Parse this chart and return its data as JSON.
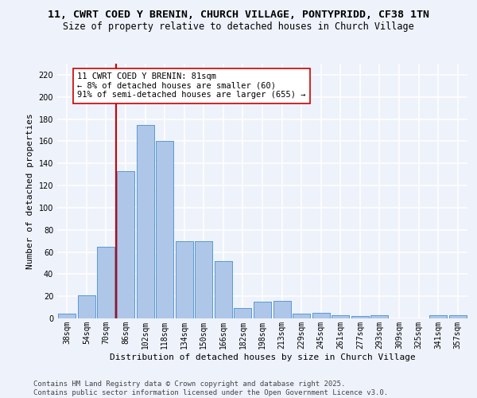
{
  "title_line1": "11, CWRT COED Y BRENIN, CHURCH VILLAGE, PONTYPRIDD, CF38 1TN",
  "title_line2": "Size of property relative to detached houses in Church Village",
  "xlabel": "Distribution of detached houses by size in Church Village",
  "ylabel": "Number of detached properties",
  "categories": [
    "38sqm",
    "54sqm",
    "70sqm",
    "86sqm",
    "102sqm",
    "118sqm",
    "134sqm",
    "150sqm",
    "166sqm",
    "182sqm",
    "198sqm",
    "213sqm",
    "229sqm",
    "245sqm",
    "261sqm",
    "277sqm",
    "293sqm",
    "309sqm",
    "325sqm",
    "341sqm",
    "357sqm"
  ],
  "values": [
    4,
    21,
    65,
    133,
    175,
    160,
    70,
    70,
    52,
    9,
    15,
    16,
    4,
    5,
    3,
    2,
    3,
    0,
    0,
    3,
    3
  ],
  "bar_color": "#aec6e8",
  "bar_edge_color": "#5b9bd5",
  "vline_color": "#cc0000",
  "vline_x": 2.5,
  "annotation_text": "11 CWRT COED Y BRENIN: 81sqm\n← 8% of detached houses are smaller (60)\n91% of semi-detached houses are larger (655) →",
  "annotation_box_color": "#ffffff",
  "annotation_box_edge": "#cc0000",
  "ylim": [
    0,
    230
  ],
  "yticks": [
    0,
    20,
    40,
    60,
    80,
    100,
    120,
    140,
    160,
    180,
    200,
    220
  ],
  "background_color": "#eef2fb",
  "grid_color": "#ffffff",
  "footer_text": "Contains HM Land Registry data © Crown copyright and database right 2025.\nContains public sector information licensed under the Open Government Licence v3.0.",
  "title_fontsize": 9.5,
  "subtitle_fontsize": 8.5,
  "axis_label_fontsize": 8,
  "tick_fontsize": 7,
  "annotation_fontsize": 7.5,
  "footer_fontsize": 6.5
}
